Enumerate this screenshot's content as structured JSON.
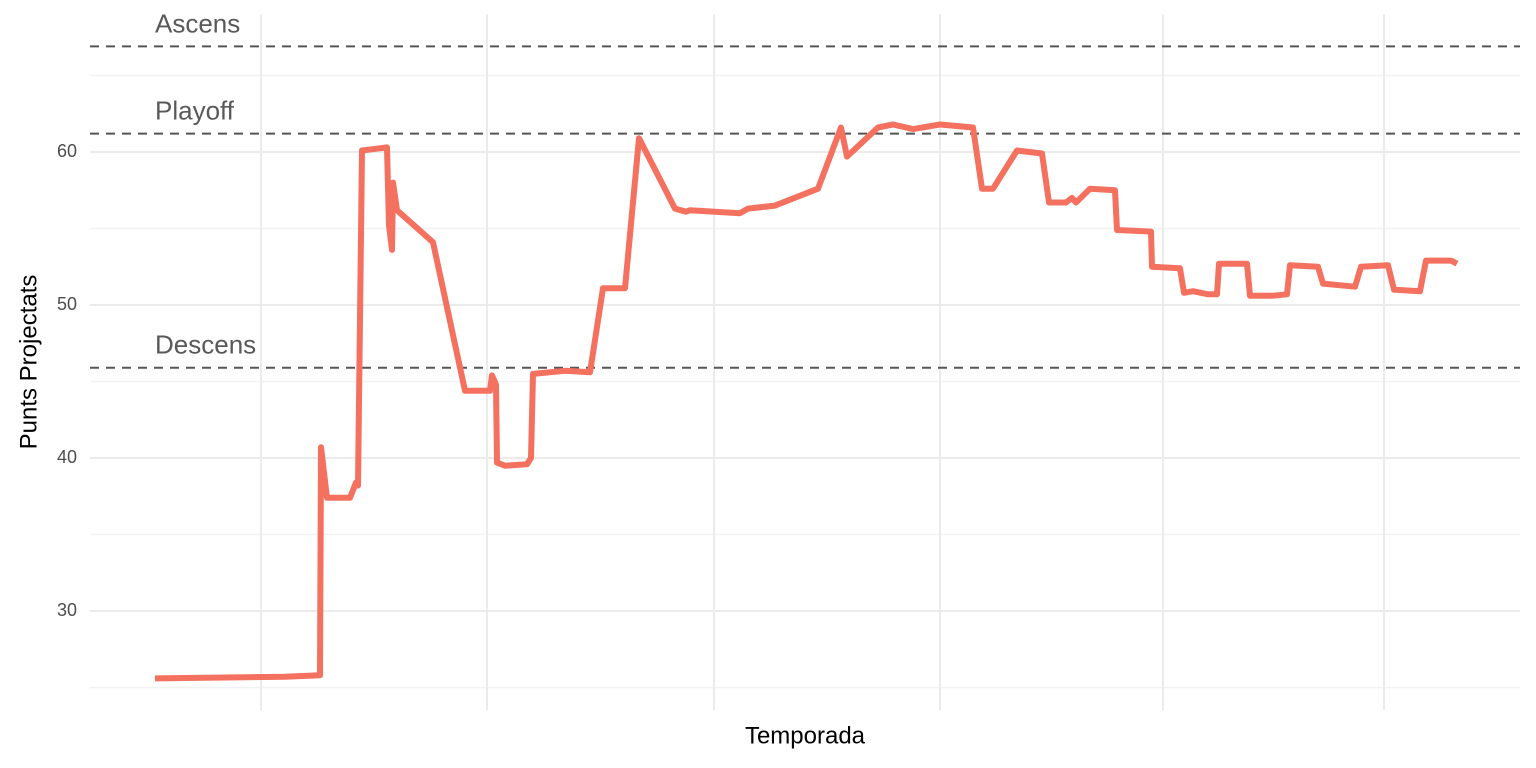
{
  "chart_data": {
    "type": "line",
    "x_label": "Temporada",
    "y_label": "Punts Projectats",
    "color": "#f4705f",
    "grid": true,
    "xlim": [
      0,
      143
    ],
    "xticks": [
      17.1,
      39.7,
      62.4,
      85.0,
      107.3,
      129.4
    ],
    "ylim": [
      23.5,
      69
    ],
    "yticks": [
      30,
      40,
      50,
      60
    ],
    "yminor": [
      25,
      35,
      45,
      55,
      65
    ],
    "hlines": [
      {
        "label": "Ascens",
        "value": 66.9
      },
      {
        "label": "Playoff",
        "value": 61.2
      },
      {
        "label": "Descens",
        "value": 45.9
      }
    ],
    "x": [
      6.5,
      19.5,
      23.0,
      23.1,
      23.7,
      26.0,
      26.6,
      26.8,
      27.2,
      29.7,
      29.9,
      30.2,
      30.3,
      30.7,
      34.3,
      37.5,
      40.0,
      40.2,
      40.6,
      40.7,
      41.5,
      43.7,
      44.1,
      44.3,
      47.5,
      50.0,
      51.3,
      53.5,
      54.9,
      58.5,
      59.6,
      60.0,
      65.0,
      65.8,
      68.5,
      72.8,
      75.1,
      75.7,
      78.8,
      80.3,
      82.3,
      85.0,
      88.3,
      89.2,
      90.3,
      92.7,
      95.2,
      95.9,
      97.6,
      98.2,
      98.6,
      100.0,
      102.5,
      102.7,
      106.1,
      106.2,
      109.0,
      109.4,
      110.3,
      111.8,
      112.7,
      112.9,
      115.7,
      116.0,
      118.2,
      119.7,
      120.0,
      122.8,
      123.3,
      126.5,
      127.1,
      129.8,
      130.4,
      133.0,
      133.6,
      136.1,
      136.7
    ],
    "values": [
      25.6,
      25.7,
      25.8,
      40.7,
      37.4,
      37.4,
      38.4,
      38.2,
      60.1,
      60.3,
      55.2,
      53.6,
      58.0,
      56.2,
      54.1,
      44.4,
      44.4,
      45.4,
      44.8,
      39.7,
      39.5,
      39.6,
      40.0,
      45.5,
      45.7,
      45.6,
      51.1,
      51.1,
      60.9,
      56.3,
      56.1,
      56.2,
      56.0,
      56.3,
      56.5,
      57.6,
      61.6,
      59.7,
      61.6,
      61.8,
      61.5,
      61.8,
      61.6,
      57.6,
      57.6,
      60.1,
      59.9,
      56.7,
      56.7,
      57.0,
      56.7,
      57.6,
      57.5,
      54.9,
      54.8,
      52.5,
      52.4,
      50.8,
      50.9,
      50.7,
      50.7,
      52.7,
      52.7,
      50.6,
      50.6,
      50.7,
      52.6,
      52.5,
      51.4,
      51.2,
      52.5,
      52.6,
      51.0,
      50.9,
      52.9,
      52.9,
      52.7
    ]
  }
}
